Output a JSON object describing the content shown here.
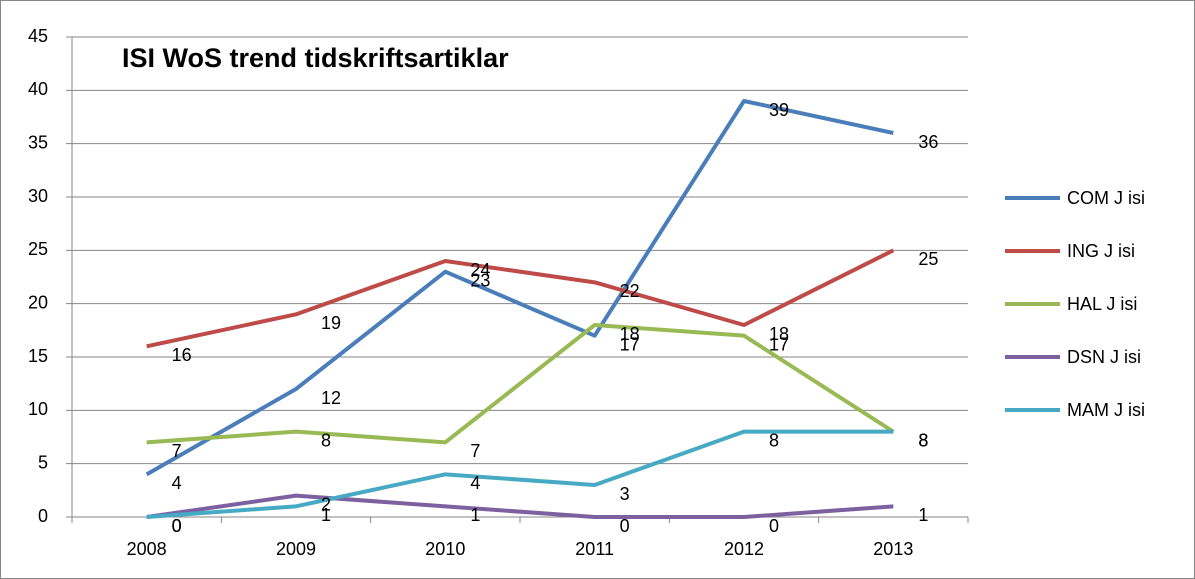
{
  "chart_data": {
    "type": "line",
    "title": "ISI WoS  trend tidskriftsartiklar",
    "categories": [
      "2008",
      "2009",
      "2010",
      "2011",
      "2012",
      "2013"
    ],
    "series": [
      {
        "name": "COM J isi",
        "color": "#4a7ebb",
        "values": [
          4,
          12,
          23,
          17,
          39,
          36
        ]
      },
      {
        "name": "ING J isi",
        "color": "#be4b48",
        "values": [
          16,
          19,
          24,
          22,
          18,
          25
        ]
      },
      {
        "name": "HAL J isi",
        "color": "#98b954",
        "values": [
          7,
          8,
          7,
          18,
          17,
          8
        ]
      },
      {
        "name": "DSN J isi",
        "color": "#7d60a0",
        "values": [
          0,
          2,
          1,
          0,
          0,
          1
        ]
      },
      {
        "name": "MAM J isi",
        "color": "#46aac5",
        "values": [
          0,
          1,
          4,
          3,
          8,
          8
        ]
      }
    ],
    "ylim": [
      0,
      45
    ],
    "yticks": [
      0,
      5,
      10,
      15,
      20,
      25,
      30,
      35,
      40,
      45
    ],
    "grid": true,
    "legend": "right"
  }
}
